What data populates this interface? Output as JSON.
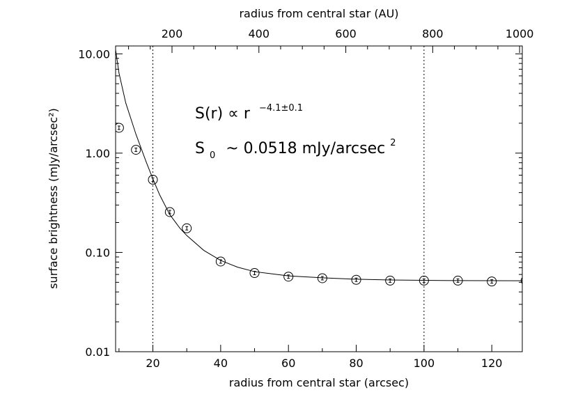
{
  "chart_data": {
    "type": "scatter",
    "xlabel": "radius from central star (arcsec)",
    "x2label": "radius from central star (AU)",
    "ylabel": "surface brightness (mJy/arcsec²)",
    "xlim": [
      9,
      129
    ],
    "ylim": [
      0.01,
      12
    ],
    "yscale": "log",
    "x_ticks": [
      20,
      40,
      60,
      80,
      100,
      120
    ],
    "x_tick_labels": [
      "20",
      "40",
      "60",
      "80",
      "100",
      "120"
    ],
    "x2_ticks": [
      200,
      400,
      600,
      800,
      1000
    ],
    "x2_tick_labels": [
      "200",
      "400",
      "600",
      "800",
      "1000"
    ],
    "au_per_arcsec": 7.8,
    "y_ticks": [
      0.01,
      0.1,
      1,
      10
    ],
    "y_tick_labels": [
      "0.01",
      "0.10",
      "1.00",
      "10.00"
    ],
    "vlines": [
      20,
      100
    ],
    "series": [
      {
        "kind": "points",
        "x": [
          10,
          15,
          20,
          25,
          30,
          40,
          50,
          60,
          70,
          80,
          90,
          100,
          110,
          120,
          130
        ],
        "y": [
          1.8,
          1.08,
          0.54,
          0.255,
          0.175,
          0.081,
          0.062,
          0.057,
          0.055,
          0.053,
          0.052,
          0.052,
          0.052,
          0.051,
          0.052
        ]
      },
      {
        "kind": "fit",
        "x": [
          9,
          10,
          12,
          15,
          18,
          20,
          22,
          25,
          28,
          30,
          35,
          40,
          45,
          50,
          60,
          70,
          80,
          90,
          100,
          110,
          120,
          129
        ],
        "y": [
          11,
          6.4,
          3.2,
          1.55,
          0.82,
          0.55,
          0.38,
          0.24,
          0.175,
          0.148,
          0.105,
          0.083,
          0.071,
          0.064,
          0.058,
          0.0555,
          0.0537,
          0.0528,
          0.0523,
          0.052,
          0.0519,
          0.0518
        ]
      }
    ],
    "annotations": {
      "line1_main": "S(r) ∝ r",
      "line1_sup": "−4.1±0.1",
      "line2_S": "S",
      "line2_sub": "0",
      "line2_main": "~ 0.0518  mJy/arcsec",
      "line2_sup": "2"
    }
  }
}
